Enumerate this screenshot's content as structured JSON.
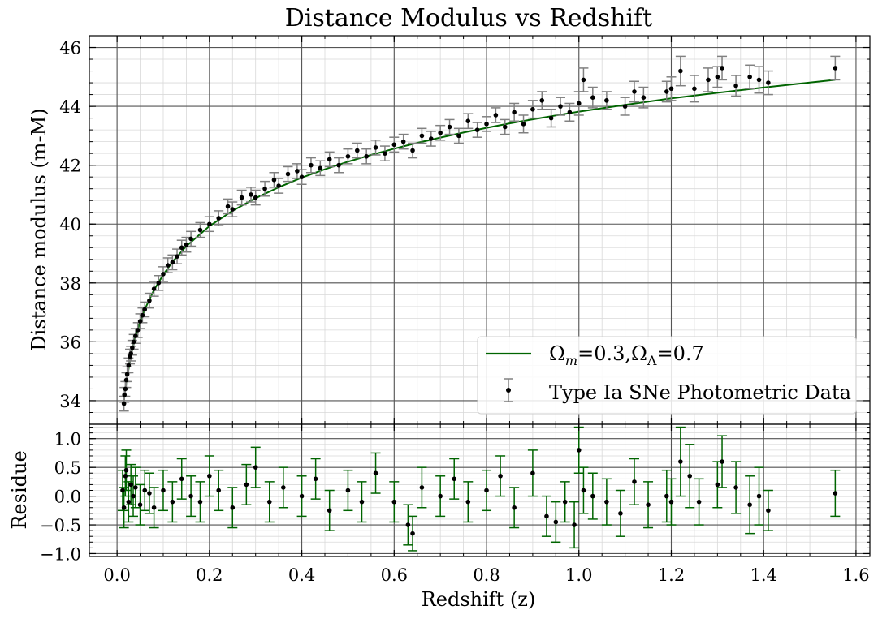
{
  "title": "Distance Modulus vs Redshift",
  "top_ylabel": "Distance modulus (m-M)",
  "bottom_ylabel": "Residue",
  "xlabel": "Redshift (z)",
  "colors": {
    "model": "#006400",
    "points": "#000000",
    "main_errorbar": "#808080",
    "residual_errorbar": "#006400",
    "grid_major": "#555555",
    "grid_minor": "#d9d9d9"
  },
  "legend": {
    "model_label_parts": [
      "Ω",
      "m",
      "=0.3,Ω",
      "Λ",
      "=0.7"
    ],
    "data_label": "Type Ia SNe Photometric Data",
    "location": "lower-right"
  },
  "chart_data": [
    {
      "type": "scatter",
      "title": "Distance Modulus vs Redshift",
      "xlabel": "",
      "ylabel": "Distance modulus (m-M)",
      "xlim": [
        -0.06,
        1.63
      ],
      "ylim": [
        33.2,
        46.4
      ],
      "xticks": [
        0.0,
        0.2,
        0.4,
        0.6,
        0.8,
        1.0,
        1.2,
        1.4,
        1.6
      ],
      "yticks": [
        34,
        36,
        38,
        40,
        42,
        44,
        46
      ],
      "ytick_labels": [
        "34",
        "36",
        "38",
        "40",
        "42",
        "44",
        "46"
      ],
      "grid": true,
      "legend": "lower-right",
      "series": [
        {
          "name": "Ωm=0.3,ΩΛ=0.7",
          "kind": "line",
          "x": [
            0.015,
            0.02,
            0.03,
            0.04,
            0.05,
            0.06,
            0.08,
            0.1,
            0.12,
            0.15,
            0.2,
            0.25,
            0.3,
            0.35,
            0.4,
            0.45,
            0.5,
            0.55,
            0.6,
            0.65,
            0.7,
            0.75,
            0.8,
            0.85,
            0.9,
            0.95,
            1.0,
            1.1,
            1.2,
            1.3,
            1.4,
            1.5,
            1.555
          ],
          "y": [
            34.0,
            34.64,
            35.52,
            36.18,
            36.68,
            37.1,
            37.76,
            38.28,
            38.72,
            39.25,
            39.93,
            40.45,
            40.88,
            41.25,
            41.58,
            41.86,
            42.12,
            42.35,
            42.56,
            42.76,
            42.94,
            43.11,
            43.27,
            43.42,
            43.56,
            43.69,
            43.82,
            44.05,
            44.27,
            44.46,
            44.64,
            44.81,
            44.9
          ]
        },
        {
          "name": "Type Ia SNe Photometric Data",
          "kind": "errorbar",
          "x": [
            0.015,
            0.016,
            0.018,
            0.02,
            0.022,
            0.025,
            0.028,
            0.03,
            0.033,
            0.036,
            0.04,
            0.045,
            0.05,
            0.055,
            0.06,
            0.07,
            0.08,
            0.09,
            0.1,
            0.11,
            0.12,
            0.13,
            0.14,
            0.15,
            0.16,
            0.18,
            0.2,
            0.22,
            0.24,
            0.25,
            0.27,
            0.29,
            0.3,
            0.32,
            0.34,
            0.35,
            0.37,
            0.39,
            0.4,
            0.42,
            0.44,
            0.46,
            0.48,
            0.5,
            0.52,
            0.54,
            0.56,
            0.58,
            0.6,
            0.62,
            0.64,
            0.66,
            0.68,
            0.7,
            0.72,
            0.74,
            0.76,
            0.78,
            0.8,
            0.82,
            0.84,
            0.86,
            0.88,
            0.9,
            0.92,
            0.94,
            0.96,
            0.98,
            1.0,
            1.01,
            1.03,
            1.06,
            1.1,
            1.12,
            1.14,
            1.19,
            1.2,
            1.22,
            1.25,
            1.28,
            1.3,
            1.31,
            1.34,
            1.37,
            1.39,
            1.41,
            1.555
          ],
          "y": [
            33.9,
            34.2,
            34.4,
            34.7,
            34.9,
            35.2,
            35.5,
            35.6,
            35.8,
            36.0,
            36.2,
            36.4,
            36.7,
            36.9,
            37.1,
            37.4,
            37.8,
            38.0,
            38.3,
            38.6,
            38.7,
            38.9,
            39.2,
            39.3,
            39.5,
            39.8,
            40.0,
            40.2,
            40.6,
            40.5,
            40.9,
            41.0,
            40.9,
            41.2,
            41.5,
            41.3,
            41.7,
            41.8,
            41.6,
            42.0,
            41.9,
            42.2,
            42.0,
            42.3,
            42.5,
            42.3,
            42.6,
            42.4,
            42.7,
            42.8,
            42.5,
            43.0,
            42.9,
            43.1,
            43.3,
            43.0,
            43.5,
            43.2,
            43.4,
            43.7,
            43.3,
            43.8,
            43.4,
            43.9,
            44.2,
            43.6,
            44.0,
            43.8,
            44.1,
            44.9,
            44.3,
            44.2,
            44.0,
            44.5,
            44.3,
            44.5,
            44.6,
            45.2,
            44.6,
            44.9,
            45.0,
            45.3,
            44.7,
            45.0,
            44.9,
            44.8,
            45.3
          ],
          "yerr": [
            0.25,
            0.25,
            0.25,
            0.25,
            0.25,
            0.25,
            0.25,
            0.25,
            0.25,
            0.25,
            0.25,
            0.25,
            0.25,
            0.25,
            0.25,
            0.25,
            0.25,
            0.25,
            0.25,
            0.25,
            0.25,
            0.25,
            0.25,
            0.25,
            0.25,
            0.25,
            0.25,
            0.25,
            0.25,
            0.25,
            0.25,
            0.25,
            0.25,
            0.25,
            0.25,
            0.25,
            0.25,
            0.25,
            0.25,
            0.25,
            0.25,
            0.25,
            0.25,
            0.25,
            0.25,
            0.25,
            0.25,
            0.25,
            0.25,
            0.25,
            0.25,
            0.25,
            0.25,
            0.25,
            0.25,
            0.25,
            0.25,
            0.25,
            0.25,
            0.25,
            0.25,
            0.3,
            0.3,
            0.3,
            0.3,
            0.3,
            0.3,
            0.3,
            0.4,
            0.4,
            0.35,
            0.3,
            0.3,
            0.35,
            0.35,
            0.35,
            0.4,
            0.5,
            0.45,
            0.4,
            0.35,
            0.4,
            0.35,
            0.4,
            0.45,
            0.4,
            0.4
          ]
        }
      ]
    },
    {
      "type": "scatter",
      "title": "",
      "xlabel": "Redshift (z)",
      "ylabel": "Residue",
      "xlim": [
        -0.06,
        1.63
      ],
      "ylim": [
        -1.05,
        1.25
      ],
      "xticks": [
        0.0,
        0.2,
        0.4,
        0.6,
        0.8,
        1.0,
        1.2,
        1.4,
        1.6
      ],
      "xtick_labels": [
        "0.0",
        "0.2",
        "0.4",
        "0.6",
        "0.8",
        "1.0",
        "1.2",
        "1.4",
        "1.6"
      ],
      "yticks": [
        -1.0,
        -0.5,
        0.0,
        0.5,
        1.0
      ],
      "ytick_labels": [
        "−1.0",
        "−0.5",
        "0.0",
        "0.5",
        "1.0"
      ],
      "grid": true,
      "series": [
        {
          "kind": "errorbar",
          "x": [
            0.012,
            0.015,
            0.018,
            0.02,
            0.025,
            0.03,
            0.035,
            0.04,
            0.05,
            0.06,
            0.07,
            0.08,
            0.1,
            0.12,
            0.14,
            0.16,
            0.18,
            0.2,
            0.22,
            0.25,
            0.28,
            0.3,
            0.33,
            0.36,
            0.4,
            0.43,
            0.46,
            0.5,
            0.53,
            0.56,
            0.6,
            0.63,
            0.64,
            0.66,
            0.7,
            0.73,
            0.76,
            0.8,
            0.83,
            0.86,
            0.9,
            0.93,
            0.95,
            0.97,
            0.99,
            1.0,
            1.01,
            1.03,
            1.06,
            1.09,
            1.12,
            1.15,
            1.19,
            1.2,
            1.22,
            1.24,
            1.26,
            1.3,
            1.31,
            1.34,
            1.37,
            1.39,
            1.41,
            1.555
          ],
          "y": [
            0.1,
            -0.2,
            0.35,
            0.45,
            -0.1,
            0.2,
            0.0,
            0.15,
            -0.15,
            0.1,
            0.05,
            -0.2,
            0.1,
            -0.1,
            0.3,
            0.0,
            -0.1,
            0.35,
            0.1,
            -0.2,
            0.2,
            0.5,
            -0.1,
            0.15,
            0.0,
            0.3,
            -0.25,
            0.1,
            -0.1,
            0.4,
            -0.1,
            -0.5,
            -0.65,
            0.15,
            0.0,
            0.3,
            -0.1,
            0.1,
            0.35,
            -0.2,
            0.4,
            -0.35,
            -0.45,
            -0.1,
            -0.5,
            0.8,
            0.1,
            0.0,
            -0.1,
            -0.3,
            0.25,
            -0.15,
            0.0,
            -0.1,
            0.6,
            0.35,
            -0.1,
            0.2,
            0.6,
            0.15,
            -0.15,
            0.0,
            -0.25,
            0.05
          ],
          "yerr": [
            0.35,
            0.35,
            0.35,
            0.35,
            0.35,
            0.35,
            0.35,
            0.35,
            0.35,
            0.35,
            0.35,
            0.35,
            0.35,
            0.35,
            0.35,
            0.35,
            0.35,
            0.35,
            0.35,
            0.35,
            0.35,
            0.35,
            0.35,
            0.35,
            0.35,
            0.35,
            0.35,
            0.35,
            0.35,
            0.35,
            0.35,
            0.35,
            0.3,
            0.35,
            0.35,
            0.35,
            0.35,
            0.35,
            0.35,
            0.35,
            0.4,
            0.35,
            0.35,
            0.35,
            0.4,
            0.4,
            0.4,
            0.4,
            0.4,
            0.4,
            0.4,
            0.4,
            0.45,
            0.4,
            0.6,
            0.55,
            0.4,
            0.4,
            0.45,
            0.45,
            0.5,
            0.5,
            0.35,
            0.4
          ]
        }
      ]
    }
  ]
}
